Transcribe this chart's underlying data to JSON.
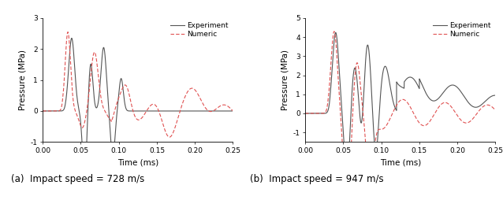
{
  "panel_a": {
    "title": "(a)  Impact speed = 728 m/s",
    "ylabel": "Pressure (MPa)",
    "xlabel": "Time (ms)",
    "xlim": [
      0.0,
      0.25
    ],
    "ylim": [
      -1.0,
      3.0
    ],
    "yticks": [
      -1,
      0,
      1,
      2,
      3
    ],
    "xticks": [
      0.0,
      0.05,
      0.1,
      0.15,
      0.2,
      0.25
    ],
    "exp_color": "#555555",
    "num_color": "#e05050",
    "legend_labels": [
      "Experiment",
      "Numeric"
    ]
  },
  "panel_b": {
    "title": "(b)  Impact speed = 947 m/s",
    "ylabel": "Pressure (MPa)",
    "xlabel": "Time (ms)",
    "xlim": [
      0.0,
      0.25
    ],
    "ylim": [
      -1.5,
      5.0
    ],
    "yticks": [
      -1,
      0,
      1,
      2,
      3,
      4,
      5
    ],
    "xticks": [
      0.0,
      0.05,
      0.1,
      0.15,
      0.2,
      0.25
    ],
    "exp_color": "#555555",
    "num_color": "#e05050",
    "legend_labels": [
      "Experiment",
      "Numeric"
    ]
  }
}
